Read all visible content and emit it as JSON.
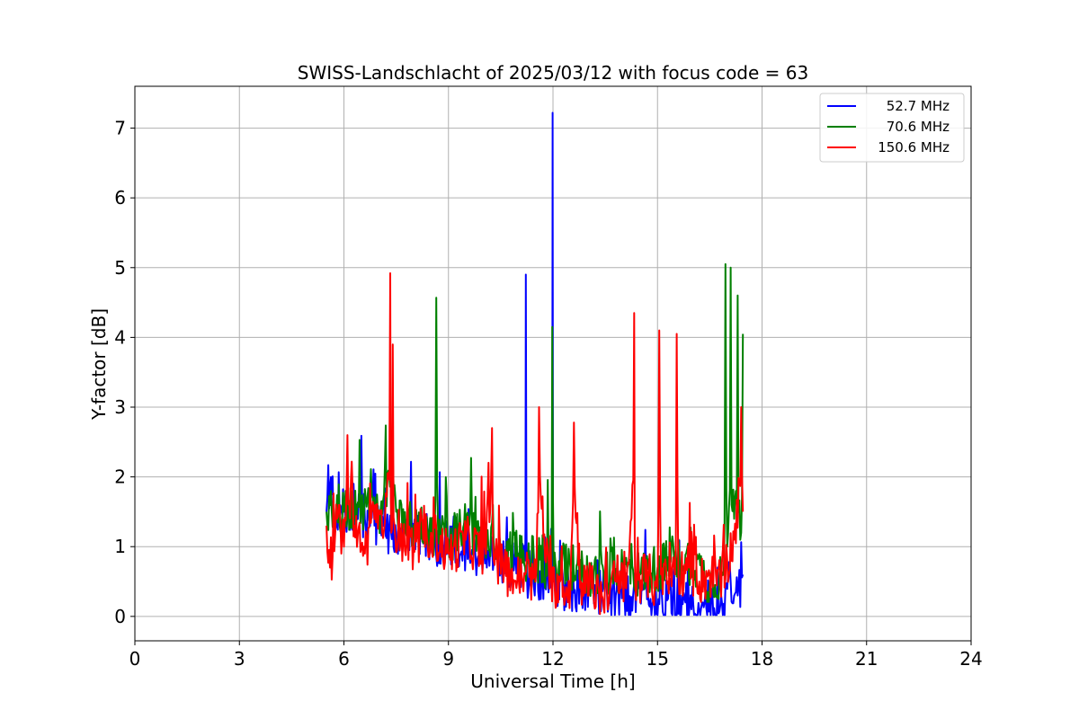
{
  "chart_data": {
    "type": "line",
    "title": "SWISS-Landschlacht of 2025/03/12 with focus code = 63",
    "xlabel": "Universal Time [h]",
    "ylabel": "Y-factor [dB]",
    "xlim": [
      0,
      24
    ],
    "ylim": [
      -0.35,
      7.6
    ],
    "xticks": [
      0,
      3,
      6,
      9,
      12,
      15,
      18,
      21,
      24
    ],
    "yticks": [
      0,
      1,
      2,
      3,
      4,
      5,
      6,
      7
    ],
    "grid": true,
    "legend_position": "top-right",
    "series": [
      {
        "name": "52.7 MHz",
        "color": "#0000ff",
        "x": [
          5.5,
          5.65,
          5.8,
          6.0,
          6.3,
          6.6,
          7.0,
          7.5,
          8.0,
          8.5,
          9.0,
          9.5,
          10.0,
          10.5,
          11.0,
          11.2,
          11.22,
          11.25,
          11.5,
          11.97,
          11.99,
          12.01,
          12.3,
          12.8,
          13.3,
          13.8,
          14.3,
          14.8,
          15.3,
          15.8,
          16.3,
          16.8,
          17.1,
          17.3,
          17.45
        ],
        "y": [
          1.5,
          1.75,
          1.3,
          1.5,
          1.6,
          1.4,
          1.3,
          1.2,
          1.2,
          1.1,
          1.0,
          1.0,
          0.9,
          0.8,
          0.7,
          0.8,
          4.9,
          0.6,
          0.6,
          0.5,
          7.22,
          0.5,
          0.4,
          0.4,
          0.35,
          0.3,
          0.3,
          0.25,
          0.25,
          0.2,
          0.2,
          0.15,
          0.5,
          0.3,
          0.6
        ]
      },
      {
        "name": "70.6 MHz",
        "color": "#008000",
        "x": [
          5.5,
          5.7,
          6.0,
          6.5,
          7.0,
          7.4,
          7.5,
          8.0,
          8.6,
          8.65,
          8.7,
          9.0,
          9.5,
          10.0,
          10.3,
          10.5,
          11.0,
          11.5,
          11.95,
          11.98,
          12.02,
          12.5,
          13.0,
          13.5,
          14.0,
          14.5,
          15.0,
          15.5,
          16.0,
          16.5,
          16.9,
          16.95,
          17.0,
          17.1,
          17.2,
          17.3,
          17.4,
          17.45
        ],
        "y": [
          1.5,
          1.6,
          1.5,
          1.6,
          1.4,
          2.3,
          1.5,
          1.3,
          1.2,
          4.57,
          1.3,
          1.1,
          1.3,
          1.1,
          1.0,
          0.9,
          0.9,
          0.8,
          0.7,
          4.15,
          0.7,
          0.7,
          0.6,
          0.6,
          0.7,
          0.6,
          0.7,
          0.8,
          0.8,
          0.5,
          0.6,
          5.05,
          1.0,
          5.0,
          1.4,
          4.6,
          1.2,
          4.05
        ]
      },
      {
        "name": "150.6 MHz",
        "color": "#ff0000",
        "x": [
          5.5,
          5.6,
          5.8,
          6.0,
          6.1,
          6.3,
          6.6,
          6.9,
          7.1,
          7.33,
          7.36,
          7.4,
          7.45,
          7.7,
          8.0,
          8.5,
          9.0,
          9.5,
          10.0,
          10.25,
          10.3,
          10.6,
          10.9,
          11.2,
          11.5,
          11.6,
          11.9,
          12.2,
          12.5,
          12.6,
          12.8,
          13.1,
          13.4,
          13.8,
          14.1,
          14.33,
          14.36,
          14.7,
          15.0,
          15.05,
          15.1,
          15.3,
          15.5,
          15.55,
          15.6,
          15.9,
          16.2,
          16.5,
          16.8,
          17.0,
          17.2,
          17.4,
          17.45
        ],
        "y": [
          1.3,
          0.7,
          1.4,
          1.0,
          2.6,
          1.3,
          0.9,
          1.6,
          1.2,
          4.92,
          1.2,
          3.9,
          1.3,
          1.1,
          1.0,
          1.2,
          0.9,
          1.1,
          0.9,
          2.7,
          0.8,
          0.7,
          0.5,
          0.6,
          0.5,
          3.0,
          0.4,
          0.5,
          0.4,
          2.78,
          0.5,
          0.4,
          0.3,
          0.5,
          0.4,
          4.35,
          0.5,
          0.6,
          0.4,
          4.1,
          0.6,
          0.5,
          0.6,
          4.05,
          0.6,
          0.7,
          0.5,
          0.6,
          0.5,
          0.8,
          1.1,
          3.0,
          1.5
        ]
      }
    ]
  }
}
